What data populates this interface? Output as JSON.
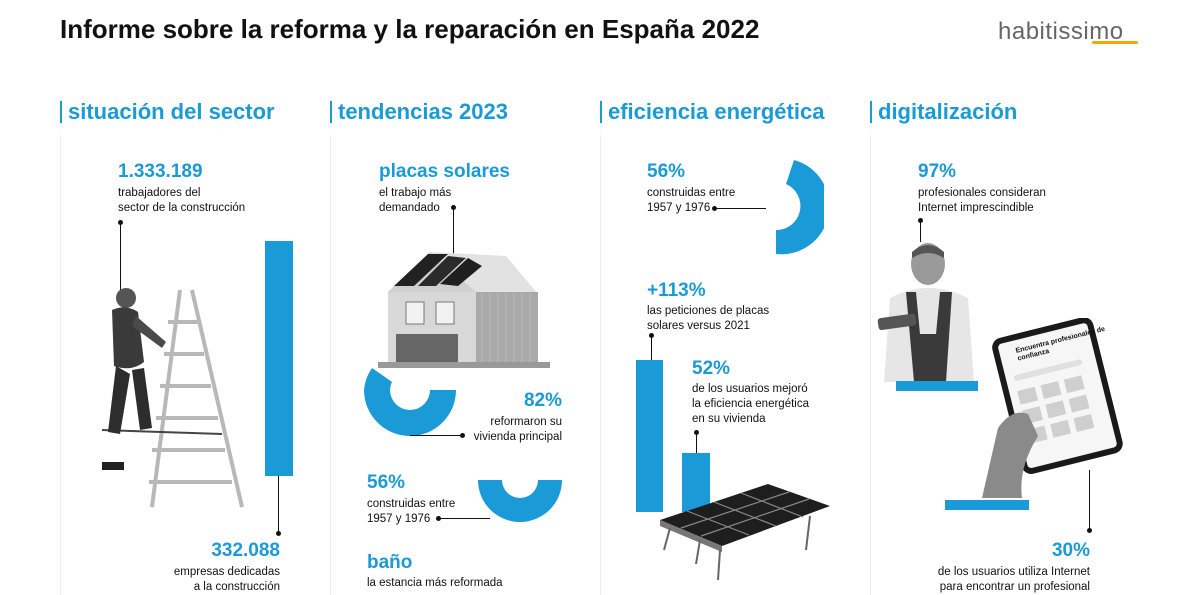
{
  "header": {
    "title": "Informe sobre la reforma y la reparación en España 2022",
    "logo": "habitissimo"
  },
  "colors": {
    "accent": "#1a9ad6",
    "logo_accent": "#f2a900"
  },
  "sections": {
    "sector": {
      "heading": "situación del sector",
      "stat1_value": "1.333.189",
      "stat1_label_line1": "trabajadores del",
      "stat1_label_line2": "sector de la construcción",
      "stat2_value": "332.088",
      "stat2_label_line1": "empresas dedicadas",
      "stat2_label_line2": "a la construcción"
    },
    "tendencias": {
      "heading": "tendencias 2023",
      "stat1_value": "placas solares",
      "stat1_label_line1": "el trabajo más",
      "stat1_label_line2": "demandado",
      "stat2_value": "82%",
      "stat2_label_line1": "reformaron su",
      "stat2_label_line2": "vivienda principal",
      "stat3_value": "56%",
      "stat3_label_line1": "construidas entre",
      "stat3_label_line2": "1957 y 1976",
      "stat4_value": "baño",
      "stat4_label": "la estancia más reformada"
    },
    "eficiencia": {
      "heading": "eficiencia energética",
      "stat1_value": "56%",
      "stat1_label_line1": "construidas entre",
      "stat1_label_line2": "1957 y 1976",
      "stat2_value": "+113%",
      "stat2_label_line1": "las peticiones de placas",
      "stat2_label_line2": "solares versus 2021",
      "stat3_value": "52%",
      "stat3_label_line1": "de los usuarios mejoró",
      "stat3_label_line2": "la eficiencia energética",
      "stat3_label_line3": "en su vivienda"
    },
    "digital": {
      "heading": "digitalización",
      "stat1_value": "97%",
      "stat1_label_line1": "profesionales consideran",
      "stat1_label_line2": "Internet imprescindible",
      "stat2_value": "30%",
      "stat2_label_line1": "de los usuarios utiliza Internet",
      "stat2_label_line2": "para encontrar un profesional",
      "tablet_heading_line1": "Encuentra profesionales de",
      "tablet_heading_line2": "confianza"
    }
  },
  "icons": [
    "worker-on-ladder-photo",
    "house-with-solar-panels-photo",
    "solar-panel-photo",
    "smiling-worker-photo",
    "hand-with-tablet-photo"
  ]
}
